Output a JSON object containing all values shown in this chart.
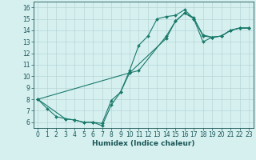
{
  "xlabel": "Humidex (Indice chaleur)",
  "bg_color": "#d6f0f0",
  "grid_color": "#b8d4d4",
  "line_color": "#1a7a6a",
  "xlim": [
    -0.5,
    23.5
  ],
  "ylim": [
    5.5,
    16.5
  ],
  "xticks": [
    0,
    1,
    2,
    3,
    4,
    5,
    6,
    7,
    8,
    9,
    10,
    11,
    12,
    13,
    14,
    15,
    16,
    17,
    18,
    19,
    20,
    21,
    22,
    23
  ],
  "yticks": [
    6,
    7,
    8,
    9,
    10,
    11,
    12,
    13,
    14,
    15,
    16
  ],
  "line1_x": [
    0,
    1,
    2,
    3,
    4,
    5,
    6,
    7,
    8,
    9,
    10,
    11,
    12,
    13,
    14,
    15,
    16,
    17,
    18,
    19,
    20,
    21,
    22,
    23
  ],
  "line1_y": [
    8.0,
    7.2,
    6.5,
    6.3,
    6.2,
    6.0,
    6.0,
    5.7,
    7.5,
    8.6,
    10.5,
    12.7,
    13.5,
    15.0,
    15.2,
    15.3,
    15.8,
    15.0,
    13.6,
    13.4,
    13.5,
    14.0,
    14.2,
    14.2
  ],
  "line2_x": [
    0,
    3,
    4,
    5,
    6,
    7,
    8,
    9,
    10,
    11,
    14,
    15,
    16,
    17,
    18,
    19,
    20,
    21,
    22,
    23
  ],
  "line2_y": [
    8.0,
    6.3,
    6.2,
    6.0,
    6.0,
    5.9,
    7.9,
    8.6,
    10.3,
    10.5,
    13.5,
    14.8,
    15.5,
    15.0,
    13.0,
    13.4,
    13.5,
    14.0,
    14.2,
    14.2
  ],
  "line3_x": [
    0,
    10,
    14,
    15,
    16,
    17,
    18,
    19,
    20,
    21,
    22,
    23
  ],
  "line3_y": [
    8.0,
    10.3,
    13.3,
    14.8,
    15.5,
    15.1,
    13.5,
    13.4,
    13.5,
    14.0,
    14.2,
    14.2
  ],
  "tick_color": "#1a5555",
  "tick_fontsize": 5.5,
  "xlabel_fontsize": 6.5
}
